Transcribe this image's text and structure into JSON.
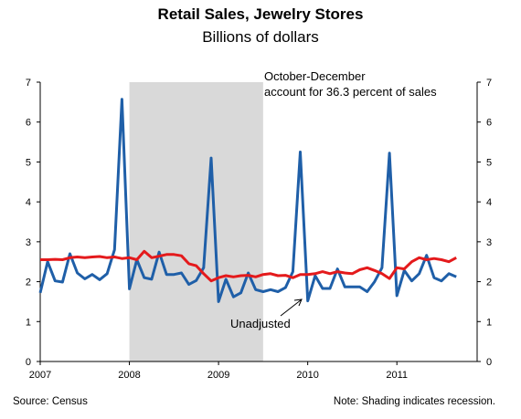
{
  "title": "Retail Sales, Jewelry Stores",
  "subtitle": "Billions of dollars",
  "source": "Source:  Census",
  "note": "Note: Shading indicates recession.",
  "chart_data": {
    "type": "line",
    "x_tick_labels": [
      "2007",
      "2008",
      "2009",
      "2010",
      "2011"
    ],
    "y_tick_labels": [
      "0",
      "1",
      "2",
      "3",
      "4",
      "5",
      "6",
      "7"
    ],
    "ylim": [
      0,
      7
    ],
    "xlim": [
      2007.0,
      2011.9
    ],
    "grid": false,
    "recession": {
      "start": 2008.0,
      "end": 2009.5
    },
    "annotations": {
      "share": [
        "October-December",
        "account for 36.3 percent of sales"
      ],
      "series_label": "Unadjusted"
    },
    "colors": {
      "unadjusted": "#1f5fa8",
      "adjusted": "#e41a1c",
      "recession": "#d9d9d9"
    },
    "series": [
      {
        "key": "unadjusted",
        "x_start": 2007.0,
        "step": 0.0833333,
        "values": [
          1.72,
          2.5,
          2.02,
          1.99,
          2.7,
          2.22,
          2.07,
          2.18,
          2.05,
          2.2,
          2.8,
          6.57,
          1.82,
          2.55,
          2.1,
          2.06,
          2.74,
          2.18,
          2.18,
          2.22,
          1.93,
          2.03,
          2.35,
          5.1,
          1.5,
          2.06,
          1.62,
          1.72,
          2.22,
          1.8,
          1.75,
          1.8,
          1.75,
          1.85,
          2.25,
          5.25,
          1.52,
          2.15,
          1.83,
          1.83,
          2.32,
          1.87,
          1.87,
          1.87,
          1.75,
          2.0,
          2.35,
          5.22,
          1.65,
          2.28,
          2.02,
          2.2,
          2.66,
          2.1,
          2.02,
          2.2,
          2.12
        ]
      },
      {
        "key": "adjusted",
        "x_start": 2007.0,
        "step": 0.0833333,
        "values": [
          2.55,
          2.55,
          2.56,
          2.55,
          2.6,
          2.62,
          2.6,
          2.62,
          2.63,
          2.6,
          2.62,
          2.58,
          2.6,
          2.55,
          2.76,
          2.6,
          2.64,
          2.68,
          2.68,
          2.65,
          2.45,
          2.4,
          2.2,
          2.02,
          2.1,
          2.15,
          2.12,
          2.15,
          2.16,
          2.12,
          2.18,
          2.2,
          2.15,
          2.16,
          2.1,
          2.18,
          2.18,
          2.2,
          2.25,
          2.2,
          2.25,
          2.22,
          2.2,
          2.3,
          2.35,
          2.28,
          2.2,
          2.08,
          2.35,
          2.32,
          2.5,
          2.6,
          2.55,
          2.58,
          2.55,
          2.5,
          2.6
        ]
      }
    ]
  }
}
